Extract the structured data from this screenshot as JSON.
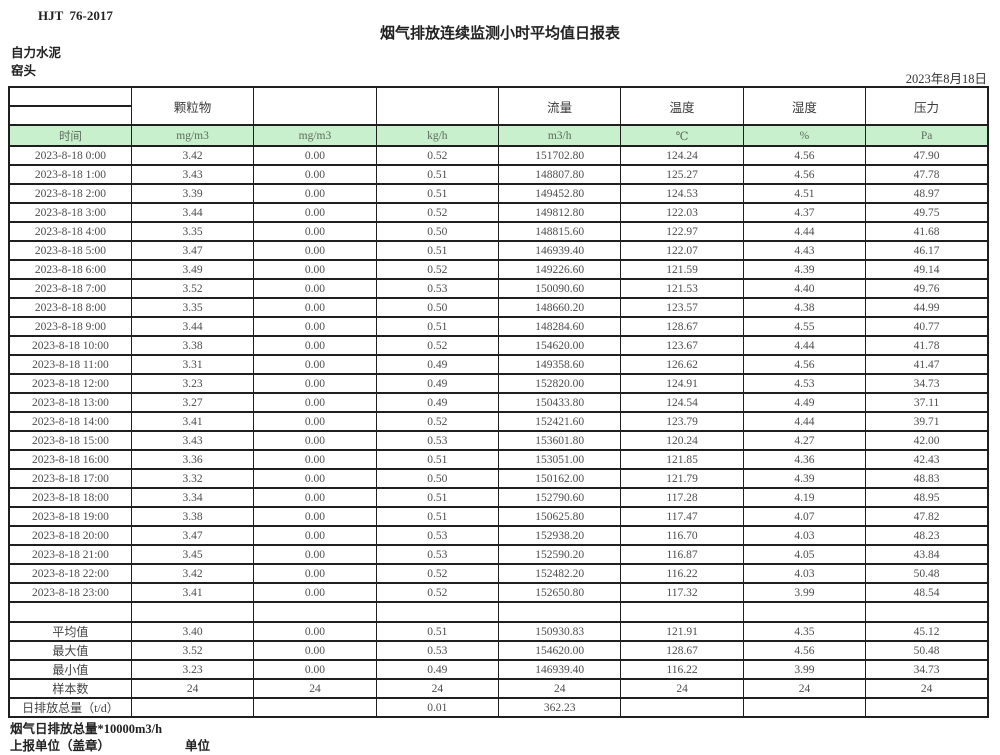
{
  "doc": {
    "standard": "HJT  76-2017",
    "title": "烟气排放连续监测小时平均值日报表",
    "company": "自力水泥",
    "location": "窑头",
    "date": "2023年8月18日"
  },
  "colors": {
    "header_green": "#c9f0cd",
    "border": "#1f1f1f"
  },
  "table": {
    "group_headers": [
      "颗粒物",
      "",
      "",
      "流量",
      "温度",
      "湿度",
      "压力"
    ],
    "unit_row": [
      "时间",
      "mg/m3",
      "mg/m3",
      "kg/h",
      "m3/h",
      "℃",
      "%",
      "Pa"
    ],
    "rows": [
      [
        "2023-8-18 0:00",
        "3.42",
        "0.00",
        "0.52",
        "151702.80",
        "124.24",
        "4.56",
        "47.90"
      ],
      [
        "2023-8-18 1:00",
        "3.43",
        "0.00",
        "0.51",
        "148807.80",
        "125.27",
        "4.56",
        "47.78"
      ],
      [
        "2023-8-18 2:00",
        "3.39",
        "0.00",
        "0.51",
        "149452.80",
        "124.53",
        "4.51",
        "48.97"
      ],
      [
        "2023-8-18 3:00",
        "3.44",
        "0.00",
        "0.52",
        "149812.80",
        "122.03",
        "4.37",
        "49.75"
      ],
      [
        "2023-8-18 4:00",
        "3.35",
        "0.00",
        "0.50",
        "148815.60",
        "122.97",
        "4.44",
        "41.68"
      ],
      [
        "2023-8-18 5:00",
        "3.47",
        "0.00",
        "0.51",
        "146939.40",
        "122.07",
        "4.43",
        "46.17"
      ],
      [
        "2023-8-18 6:00",
        "3.49",
        "0.00",
        "0.52",
        "149226.60",
        "121.59",
        "4.39",
        "49.14"
      ],
      [
        "2023-8-18 7:00",
        "3.52",
        "0.00",
        "0.53",
        "150090.60",
        "121.53",
        "4.40",
        "49.76"
      ],
      [
        "2023-8-18 8:00",
        "3.35",
        "0.00",
        "0.50",
        "148660.20",
        "123.57",
        "4.38",
        "44.99"
      ],
      [
        "2023-8-18 9:00",
        "3.44",
        "0.00",
        "0.51",
        "148284.60",
        "128.67",
        "4.55",
        "40.77"
      ],
      [
        "2023-8-18 10:00",
        "3.38",
        "0.00",
        "0.52",
        "154620.00",
        "123.67",
        "4.44",
        "41.78"
      ],
      [
        "2023-8-18 11:00",
        "3.31",
        "0.00",
        "0.49",
        "149358.60",
        "126.62",
        "4.56",
        "41.47"
      ],
      [
        "2023-8-18 12:00",
        "3.23",
        "0.00",
        "0.49",
        "152820.00",
        "124.91",
        "4.53",
        "34.73"
      ],
      [
        "2023-8-18 13:00",
        "3.27",
        "0.00",
        "0.49",
        "150433.80",
        "124.54",
        "4.49",
        "37.11"
      ],
      [
        "2023-8-18 14:00",
        "3.41",
        "0.00",
        "0.52",
        "152421.60",
        "123.79",
        "4.44",
        "39.71"
      ],
      [
        "2023-8-18 15:00",
        "3.43",
        "0.00",
        "0.53",
        "153601.80",
        "120.24",
        "4.27",
        "42.00"
      ],
      [
        "2023-8-18 16:00",
        "3.36",
        "0.00",
        "0.51",
        "153051.00",
        "121.85",
        "4.36",
        "42.43"
      ],
      [
        "2023-8-18 17:00",
        "3.32",
        "0.00",
        "0.50",
        "150162.00",
        "121.79",
        "4.39",
        "48.83"
      ],
      [
        "2023-8-18 18:00",
        "3.34",
        "0.00",
        "0.51",
        "152790.60",
        "117.28",
        "4.19",
        "48.95"
      ],
      [
        "2023-8-18 19:00",
        "3.38",
        "0.00",
        "0.51",
        "150625.80",
        "117.47",
        "4.07",
        "47.82"
      ],
      [
        "2023-8-18 20:00",
        "3.47",
        "0.00",
        "0.53",
        "152938.20",
        "116.70",
        "4.03",
        "48.23"
      ],
      [
        "2023-8-18 21:00",
        "3.45",
        "0.00",
        "0.53",
        "152590.20",
        "116.87",
        "4.05",
        "43.84"
      ],
      [
        "2023-8-18 22:00",
        "3.42",
        "0.00",
        "0.52",
        "152482.20",
        "116.22",
        "4.03",
        "50.48"
      ],
      [
        "2023-8-18 23:00",
        "3.41",
        "0.00",
        "0.52",
        "152650.80",
        "117.32",
        "3.99",
        "48.54"
      ]
    ],
    "spacer": [
      "",
      "",
      "",
      "",
      "",
      "",
      "",
      ""
    ],
    "summary": [
      [
        "平均值",
        "3.40",
        "0.00",
        "0.51",
        "150930.83",
        "121.91",
        "4.35",
        "45.12"
      ],
      [
        "最大值",
        "3.52",
        "0.00",
        "0.53",
        "154620.00",
        "128.67",
        "4.56",
        "50.48"
      ],
      [
        "最小值",
        "3.23",
        "0.00",
        "0.49",
        "146939.40",
        "116.22",
        "3.99",
        "34.73"
      ],
      [
        "样本数",
        "24",
        "24",
        "24",
        "24",
        "24",
        "24",
        "24"
      ],
      [
        "日排放总量（t/d）",
        "",
        "",
        "0.01",
        "362.23",
        "",
        "",
        ""
      ]
    ]
  },
  "footer": {
    "note": "烟气日排放总量*10000m3/h",
    "report_unit_label": "上报单位（盖章）",
    "unit_label": "单位"
  }
}
